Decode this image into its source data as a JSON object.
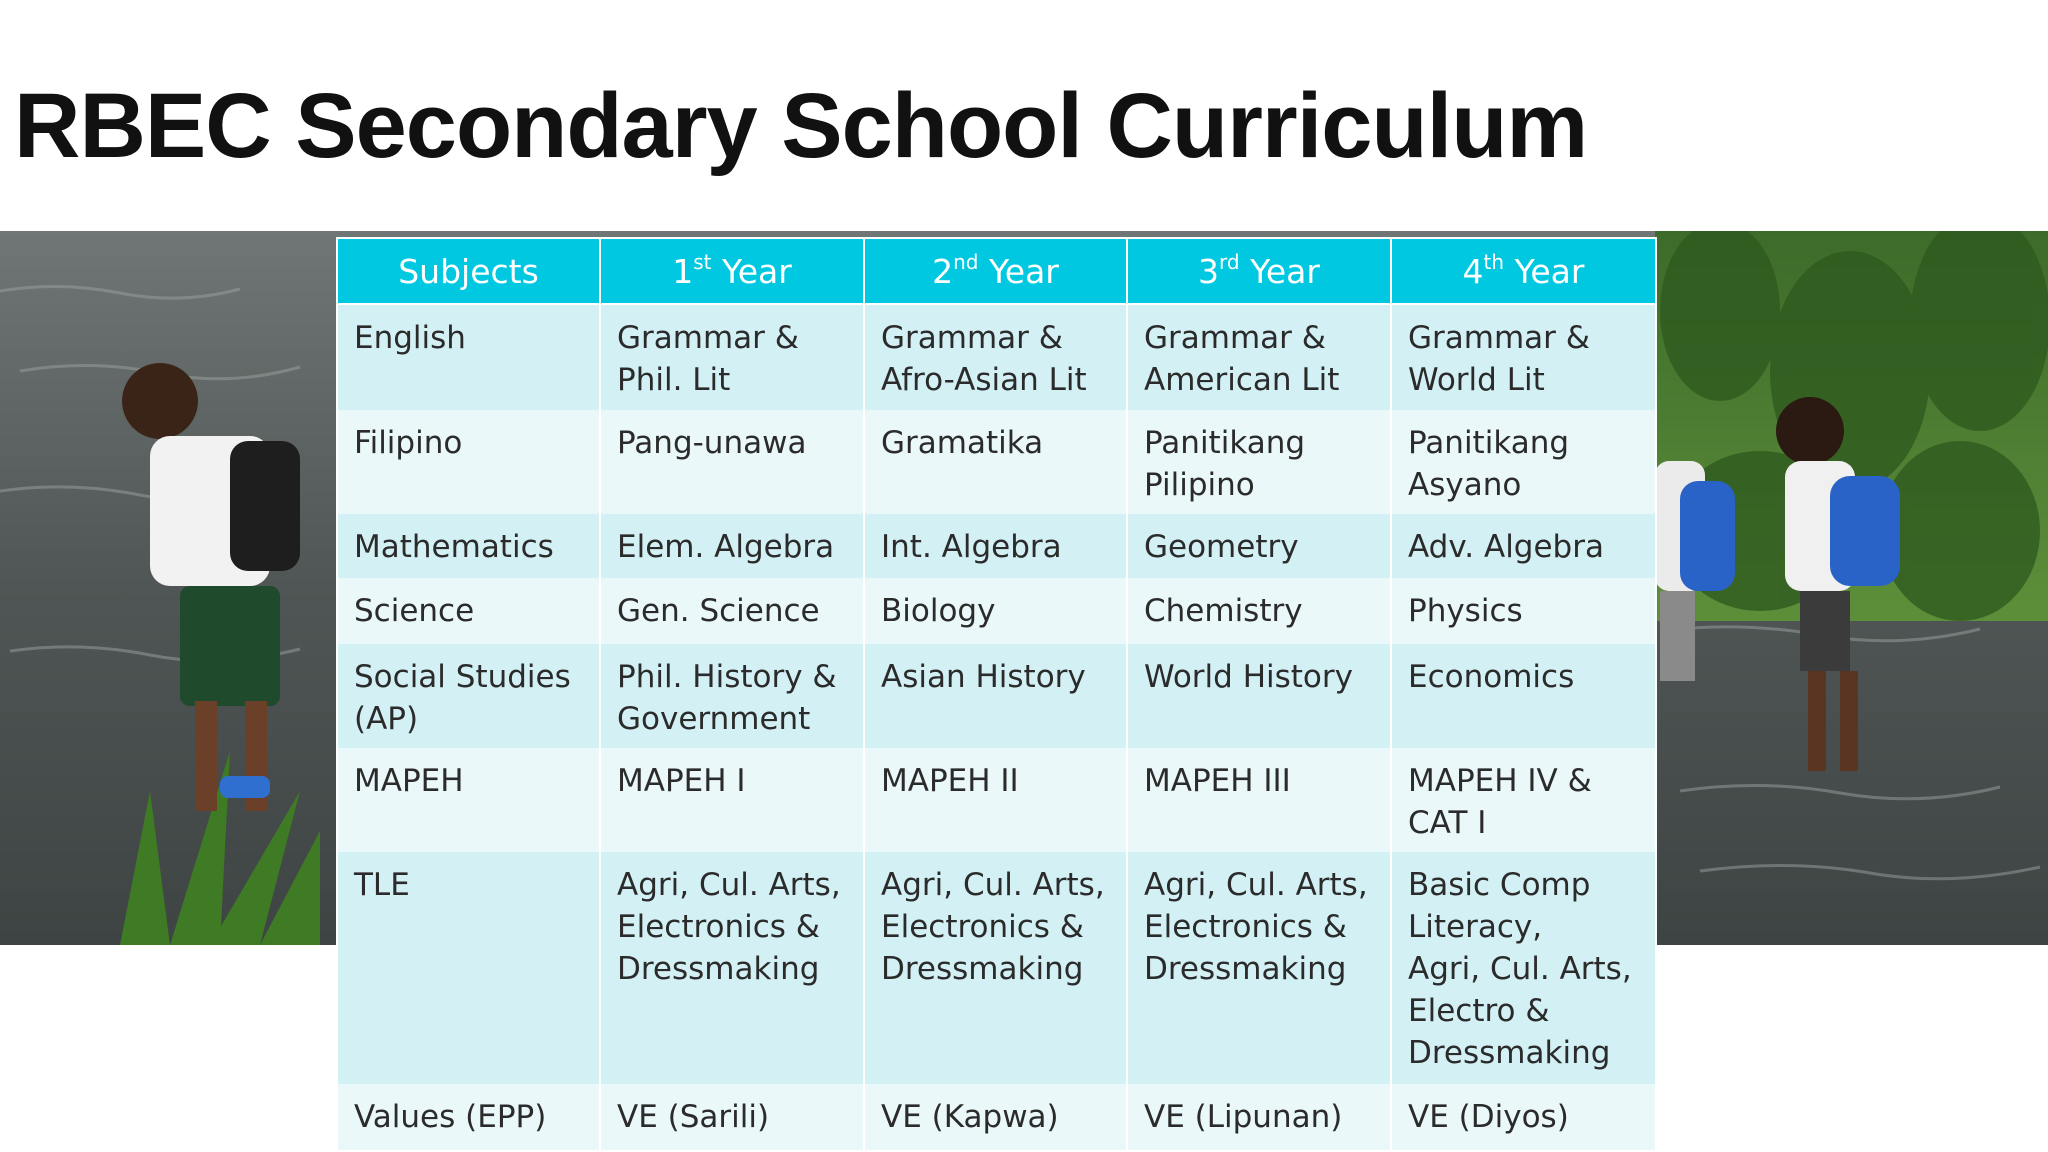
{
  "title": "RBEC Secondary School Curriculum",
  "table": {
    "headers": [
      {
        "main": "Subjects",
        "sup": "",
        "rest": ""
      },
      {
        "main": "1",
        "sup": "st",
        "rest": " Year"
      },
      {
        "main": "2",
        "sup": "nd",
        "rest": " Year"
      },
      {
        "main": "3",
        "sup": "rd",
        "rest": " Year"
      },
      {
        "main": "4",
        "sup": "th",
        "rest": " Year"
      }
    ],
    "rows": [
      [
        "English",
        "Grammar &\nPhil. Lit",
        "Grammar &\nAfro-Asian Lit",
        "Grammar &\nAmerican Lit",
        "Grammar &\nWorld Lit"
      ],
      [
        "Filipino",
        "Pang-unawa",
        "Gramatika",
        "Panitikang\nPilipino",
        "Panitikang\nAsyano"
      ],
      [
        "Mathematics",
        "Elem. Algebra",
        "Int. Algebra",
        "Geometry",
        "Adv. Algebra"
      ],
      [
        "Science",
        "Gen. Science",
        "Biology",
        "Chemistry",
        "Physics"
      ],
      [
        "Social Studies\n(AP)",
        "Phil. History &\nGovernment",
        "Asian History",
        "World History",
        "Economics"
      ],
      [
        "MAPEH",
        "MAPEH I",
        "MAPEH II",
        "MAPEH III",
        "MAPEH IV &\nCAT I"
      ],
      [
        "TLE",
        "Agri, Cul. Arts,\nElectronics &\nDressmaking",
        "Agri, Cul. Arts,\nElectronics &\nDressmaking",
        "Agri, Cul. Arts,\nElectronics &\nDressmaking",
        "Basic Comp\nLiteracy,\nAgri, Cul. Arts,\nElectro &\nDressmaking"
      ],
      [
        "Values (EPP)",
        "VE (Sarili)",
        "VE (Kapwa)",
        "VE (Lipunan)",
        "VE (Diyos)"
      ]
    ]
  },
  "colors": {
    "header_bg": "#00c8e0",
    "row_odd": "#d3f1f5",
    "row_even": "#eaf8fa",
    "title": "#111111"
  }
}
